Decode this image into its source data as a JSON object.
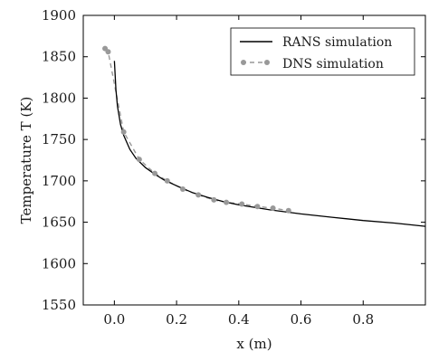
{
  "chart_data": {
    "type": "line",
    "xlabel": "x (m)",
    "ylabel": "Temperature T (K)",
    "xlim": [
      -0.1,
      1.0
    ],
    "ylim": [
      1550,
      1900
    ],
    "x_ticks": [
      0.0,
      0.2,
      0.4,
      0.6,
      0.8
    ],
    "x_tick_labels": [
      "0.0",
      "0.2",
      "0.4",
      "0.6",
      "0.8"
    ],
    "y_ticks": [
      1550,
      1600,
      1650,
      1700,
      1750,
      1800,
      1850,
      1900
    ],
    "y_tick_labels": [
      "1550",
      "1600",
      "1650",
      "1700",
      "1750",
      "1800",
      "1850",
      "1900"
    ],
    "grid": false,
    "legend_position": "top-right",
    "series": [
      {
        "name": "RANS simulation",
        "style": "solid-line",
        "color": "#000000",
        "x": [
          0.0,
          0.005,
          0.01,
          0.02,
          0.03,
          0.05,
          0.07,
          0.1,
          0.13,
          0.16,
          0.2,
          0.25,
          0.3,
          0.35,
          0.4,
          0.5,
          0.6,
          0.7,
          0.8,
          0.9,
          1.0
        ],
        "y": [
          1845,
          1810,
          1790,
          1768,
          1755,
          1738,
          1727,
          1716,
          1708,
          1701,
          1694,
          1686,
          1680,
          1675,
          1671,
          1665,
          1660,
          1656,
          1652,
          1649,
          1645
        ]
      },
      {
        "name": "DNS simulation",
        "style": "dashed-line-circle-markers",
        "color": "#999999",
        "x": [
          -0.03,
          -0.02,
          0.03,
          0.08,
          0.13,
          0.17,
          0.22,
          0.27,
          0.32,
          0.36,
          0.41,
          0.46,
          0.51,
          0.56
        ],
        "y": [
          1860,
          1856,
          1759,
          1726,
          1709,
          1700,
          1690,
          1683,
          1677,
          1674,
          1672,
          1669,
          1667,
          1664
        ]
      }
    ]
  }
}
